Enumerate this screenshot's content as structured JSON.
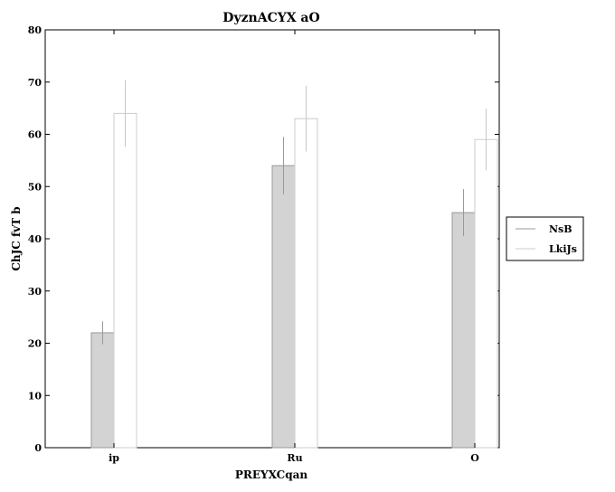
{
  "chart_data": {
    "type": "bar",
    "title": "DyznACYX aO",
    "xlabel": "PREYXCqan",
    "ylabel": "ChJC fvT b",
    "categories": [
      "ip",
      "Ru",
      "O"
    ],
    "series": [
      {
        "name": "NsB",
        "values": [
          22,
          54,
          45
        ],
        "errors": [
          2.2,
          5.5,
          4.5
        ],
        "fill": "#d3d3d3",
        "stroke": "#999999"
      },
      {
        "name": "LkiJs",
        "values": [
          64,
          63,
          59
        ],
        "errors": [
          6.4,
          6.3,
          5.9
        ],
        "fill": "#ffffff",
        "stroke": "#cccccc"
      }
    ],
    "ylim": [
      0,
      80
    ],
    "yticks": [
      0,
      10,
      20,
      30,
      40,
      50,
      60,
      70,
      80
    ],
    "grid": false,
    "legend": "right"
  }
}
